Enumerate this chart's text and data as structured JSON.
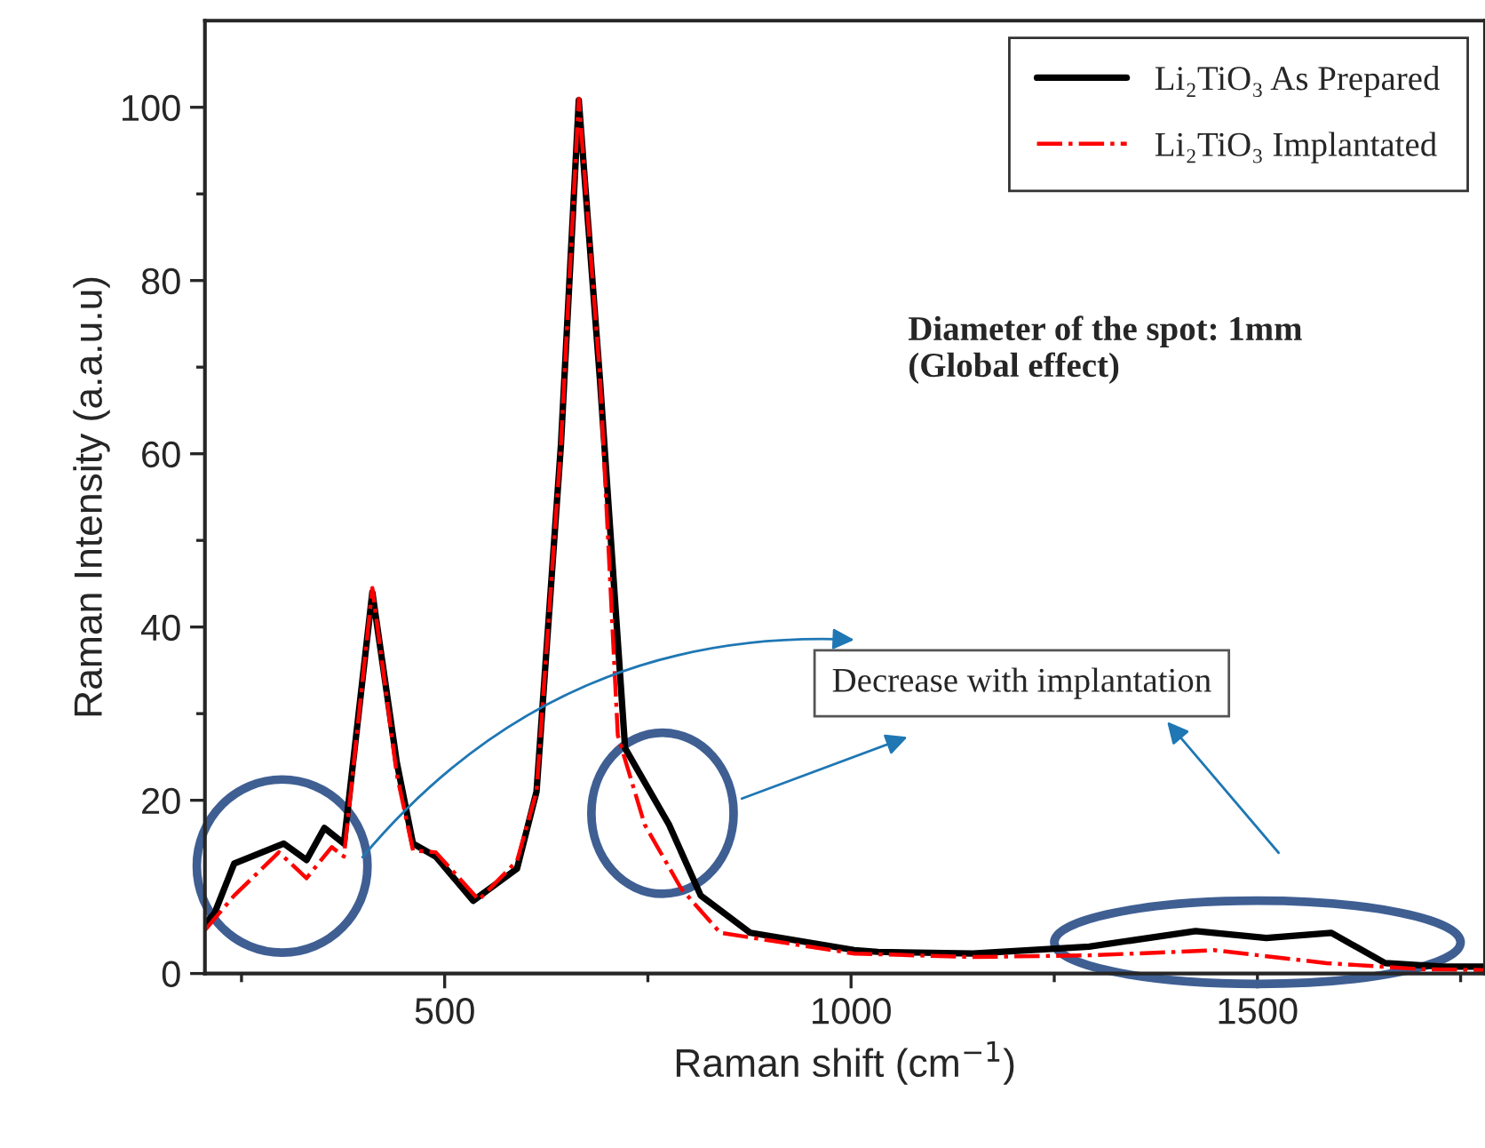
{
  "chart_data": {
    "type": "line",
    "xlabel": "Raman shift (cm$^{−1}$)",
    "ylabel": "Raman Intensity (a.a.u.u)",
    "xlim": [
      205,
      1780
    ],
    "ylim": [
      0,
      110
    ],
    "xticks": [
      {
        "value": 250,
        "label": null
      },
      500,
      {
        "value": 750,
        "label": null
      },
      1000,
      {
        "value": 1250,
        "label": null
      },
      1500,
      {
        "value": 1750,
        "label": null
      }
    ],
    "yticks": [
      0,
      {
        "value": 10,
        "label": null
      },
      20,
      {
        "value": 30,
        "label": null
      },
      40,
      {
        "value": 50,
        "label": null
      },
      60,
      {
        "value": 70,
        "label": null
      },
      80,
      {
        "value": 90,
        "label": null
      },
      100
    ],
    "legend": "top right",
    "grid": false,
    "annotations": [
      "Diameter of the spot: 1mm\n(Global effect)",
      "Decrease with implantation"
    ],
    "series": [
      {
        "name": "Li₂TiO₃ As Prepared",
        "color": "#000000",
        "line_style": "solid",
        "x": [
          205,
          217,
          241,
          302,
          330,
          352,
          376,
          411,
          441,
          461,
          489,
          535,
          589,
          613,
          643,
          665,
          691,
          722,
          776,
          815,
          876,
          1004,
          1033,
          1150,
          1293,
          1424,
          1511,
          1591,
          1657,
          1728,
          1780
        ],
        "values": [
          5.7,
          7,
          12.7,
          15,
          13.1,
          16.8,
          15,
          44,
          24.4,
          15,
          13.5,
          8.4,
          12.1,
          21,
          61,
          100.8,
          68.6,
          26,
          17.2,
          9,
          4.7,
          2.7,
          2.5,
          2.3,
          3.1,
          4.9,
          4.1,
          4.7,
          1.2,
          0.8,
          0.8
        ]
      },
      {
        "name": "Li₂TiO₃ Implantated",
        "color": "#ff0000",
        "line_style": "dashdot",
        "x": [
          205,
          241,
          296,
          330,
          361,
          376,
          411,
          441,
          461,
          489,
          542,
          589,
          613,
          643,
          665,
          691,
          713,
          746,
          791,
          839,
          1004,
          1150,
          1293,
          1402,
          1446,
          1585,
          1700,
          1780
        ],
        "values": [
          5,
          9,
          14,
          11,
          14.6,
          13.5,
          44.5,
          23,
          14.2,
          14,
          8.5,
          13,
          21,
          61,
          101,
          69,
          27.5,
          17.2,
          9.8,
          4.7,
          2.3,
          1.9,
          2.1,
          2.5,
          2.7,
          1.2,
          0.5,
          0.4
        ]
      }
    ]
  }
}
